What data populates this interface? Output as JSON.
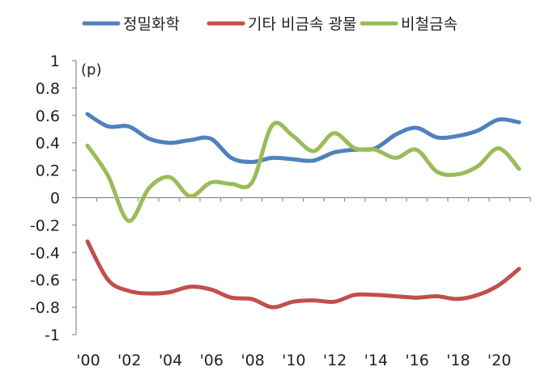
{
  "chart_data": {
    "type": "line",
    "title": "",
    "unit_label": "(p)",
    "xlabel": "",
    "ylabel": "",
    "x": [
      2000,
      2001,
      2002,
      2003,
      2004,
      2005,
      2006,
      2007,
      2008,
      2009,
      2010,
      2011,
      2012,
      2013,
      2014,
      2015,
      2016,
      2017,
      2018,
      2019,
      2020,
      2021
    ],
    "xlim": [
      2000,
      2021
    ],
    "ylim": [
      -1,
      1
    ],
    "yticks": [
      1,
      0.8,
      0.6,
      0.4,
      0.2,
      0,
      -0.2,
      -0.4,
      -0.6,
      -0.8,
      -1
    ],
    "ytick_labels": [
      "1",
      "0.8",
      "0.6",
      "0.4",
      "0.2",
      "0",
      "-0.2",
      "-0.4",
      "-0.6",
      "-0.8",
      "-1"
    ],
    "xticks": [
      2000,
      2002,
      2004,
      2006,
      2008,
      2010,
      2012,
      2014,
      2016,
      2018,
      2020
    ],
    "xtick_labels": [
      "'00",
      "'02",
      "'04",
      "'06",
      "'08",
      "'10",
      "'12",
      "'14",
      "'16",
      "'18",
      "'20"
    ],
    "legend_position": "top",
    "series": [
      {
        "name": "정밀화학",
        "color": "#4f81bd",
        "values": [
          0.61,
          0.52,
          0.52,
          0.43,
          0.4,
          0.42,
          0.43,
          0.29,
          0.26,
          0.29,
          0.28,
          0.27,
          0.33,
          0.35,
          0.36,
          0.46,
          0.51,
          0.44,
          0.45,
          0.49,
          0.57,
          0.55
        ]
      },
      {
        "name": "기타 비금속 광물",
        "color": "#c0504d",
        "values": [
          -0.32,
          -0.6,
          -0.68,
          -0.7,
          -0.69,
          -0.65,
          -0.67,
          -0.73,
          -0.74,
          -0.8,
          -0.76,
          -0.75,
          -0.76,
          -0.71,
          -0.71,
          -0.72,
          -0.73,
          -0.72,
          -0.74,
          -0.71,
          -0.64,
          -0.52
        ]
      },
      {
        "name": "비철금속",
        "color": "#9bbb59",
        "values": [
          0.38,
          0.16,
          -0.17,
          0.07,
          0.15,
          0.01,
          0.11,
          0.1,
          0.11,
          0.53,
          0.45,
          0.34,
          0.47,
          0.36,
          0.35,
          0.29,
          0.35,
          0.19,
          0.17,
          0.23,
          0.36,
          0.21
        ]
      }
    ]
  }
}
